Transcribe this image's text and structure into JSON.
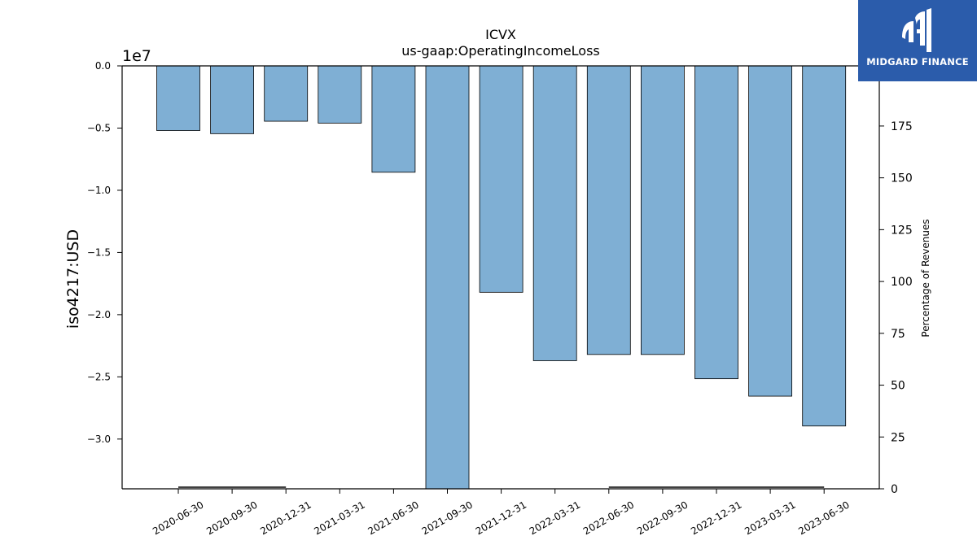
{
  "chart_data": {
    "type": "bar",
    "title": "ICVX",
    "subtitle": "us-gaap:OperatingIncomeLoss",
    "ylabel": "iso4217:USD",
    "y_offset_label": "1e7",
    "y2label": "Percentage of Revenues",
    "categories": [
      "2020-06-30",
      "2020-09-30",
      "2020-12-31",
      "2021-03-31",
      "2021-06-30",
      "2021-09-30",
      "2021-12-31",
      "2022-03-31",
      "2022-06-30",
      "2022-09-30",
      "2022-12-31",
      "2023-03-31",
      "2023-06-30"
    ],
    "values": [
      -5200000,
      -5450000,
      -4450000,
      -4600000,
      -8550000,
      -34000000,
      -18200000,
      -23700000,
      -23200000,
      -23200000,
      -25150000,
      -26550000,
      -28950000
    ],
    "ylim": [
      -34000000,
      0
    ],
    "yticks": [
      0,
      -5000000,
      -10000000,
      -15000000,
      -20000000,
      -25000000,
      -30000000
    ],
    "ytick_labels": [
      "0.0",
      "−0.5",
      "−1.0",
      "−1.5",
      "−2.0",
      "−2.5",
      "−3.0"
    ],
    "y2lim": [
      0,
      204
    ],
    "y2ticks": [
      0,
      25,
      50,
      75,
      100,
      125,
      150,
      175
    ],
    "percentage_series": {
      "name": "",
      "values": [
        0.4,
        0.4,
        0.4,
        null,
        null,
        null,
        null,
        null,
        0.4,
        0.4,
        0.4,
        0.4,
        0.4
      ]
    },
    "bar_color": "#7fafd4",
    "grid": false
  },
  "logo": {
    "text": "MIDGARD FINANCE",
    "color": "#2b5cab"
  }
}
